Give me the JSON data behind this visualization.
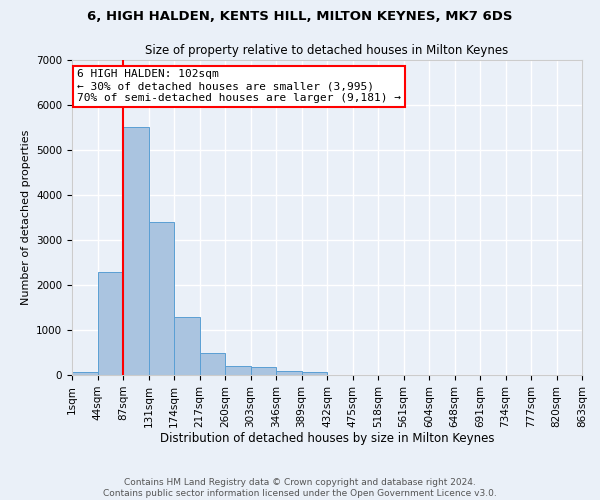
{
  "title1": "6, HIGH HALDEN, KENTS HILL, MILTON KEYNES, MK7 6DS",
  "title2": "Size of property relative to detached houses in Milton Keynes",
  "xlabel": "Distribution of detached houses by size in Milton Keynes",
  "ylabel": "Number of detached properties",
  "footer1": "Contains HM Land Registry data © Crown copyright and database right 2024.",
  "footer2": "Contains public sector information licensed under the Open Government Licence v3.0.",
  "annotation_line1": "6 HIGH HALDEN: 102sqm",
  "annotation_line2": "← 30% of detached houses are smaller (3,995)",
  "annotation_line3": "70% of semi-detached houses are larger (9,181) →",
  "bar_values": [
    75,
    2300,
    5500,
    3400,
    1300,
    500,
    200,
    175,
    100,
    60,
    0,
    0,
    0,
    0,
    0,
    0,
    0,
    0,
    0,
    0
  ],
  "bin_labels": [
    "1sqm",
    "44sqm",
    "87sqm",
    "131sqm",
    "174sqm",
    "217sqm",
    "260sqm",
    "303sqm",
    "346sqm",
    "389sqm",
    "432sqm",
    "475sqm",
    "518sqm",
    "561sqm",
    "604sqm",
    "648sqm",
    "691sqm",
    "734sqm",
    "777sqm",
    "820sqm",
    "863sqm"
  ],
  "bar_color": "#aac4e0",
  "bar_edge_color": "#5a9fd4",
  "vline_x": 2,
  "vline_color": "red",
  "background_color": "#eaf0f8",
  "grid_color": "#ffffff",
  "ylim": [
    0,
    7000
  ],
  "yticks": [
    0,
    1000,
    2000,
    3000,
    4000,
    5000,
    6000,
    7000
  ],
  "title1_fontsize": 9.5,
  "title2_fontsize": 8.5,
  "xlabel_fontsize": 8.5,
  "ylabel_fontsize": 8,
  "tick_fontsize": 7.5,
  "footer_fontsize": 6.5,
  "annotation_fontsize": 8
}
